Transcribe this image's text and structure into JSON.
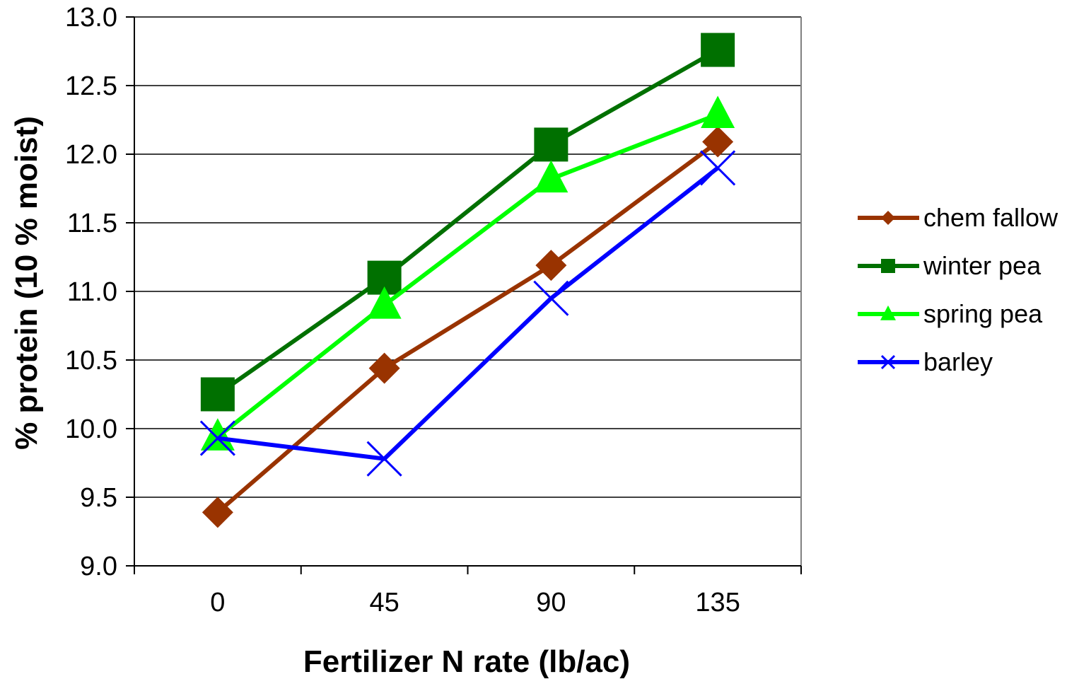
{
  "chart_data": {
    "type": "line",
    "title": "",
    "xlabel": "Fertilizer N rate (lb/ac)",
    "ylabel": "% protein (10 % moist)",
    "categories": [
      "0",
      "45",
      "90",
      "135"
    ],
    "ylim": [
      9.0,
      13.0
    ],
    "y_ticks": [
      "9.0",
      "9.5",
      "10.0",
      "10.5",
      "11.0",
      "11.5",
      "12.0",
      "12.5",
      "13.0"
    ],
    "grid": "horizontal",
    "legend_position": "right",
    "series": [
      {
        "name": "chem fallow",
        "values": [
          9.39,
          10.44,
          11.19,
          12.09
        ],
        "color": "#993300",
        "marker": "diamond"
      },
      {
        "name": "winter pea",
        "values": [
          10.25,
          11.1,
          12.07,
          12.76
        ],
        "color": "#007000",
        "marker": "square"
      },
      {
        "name": "spring pea",
        "values": [
          9.94,
          10.9,
          11.82,
          12.29
        ],
        "color": "#00ff00",
        "marker": "triangle"
      },
      {
        "name": "barley",
        "values": [
          9.93,
          9.78,
          10.95,
          11.9
        ],
        "color": "#0000ff",
        "marker": "x"
      }
    ]
  }
}
